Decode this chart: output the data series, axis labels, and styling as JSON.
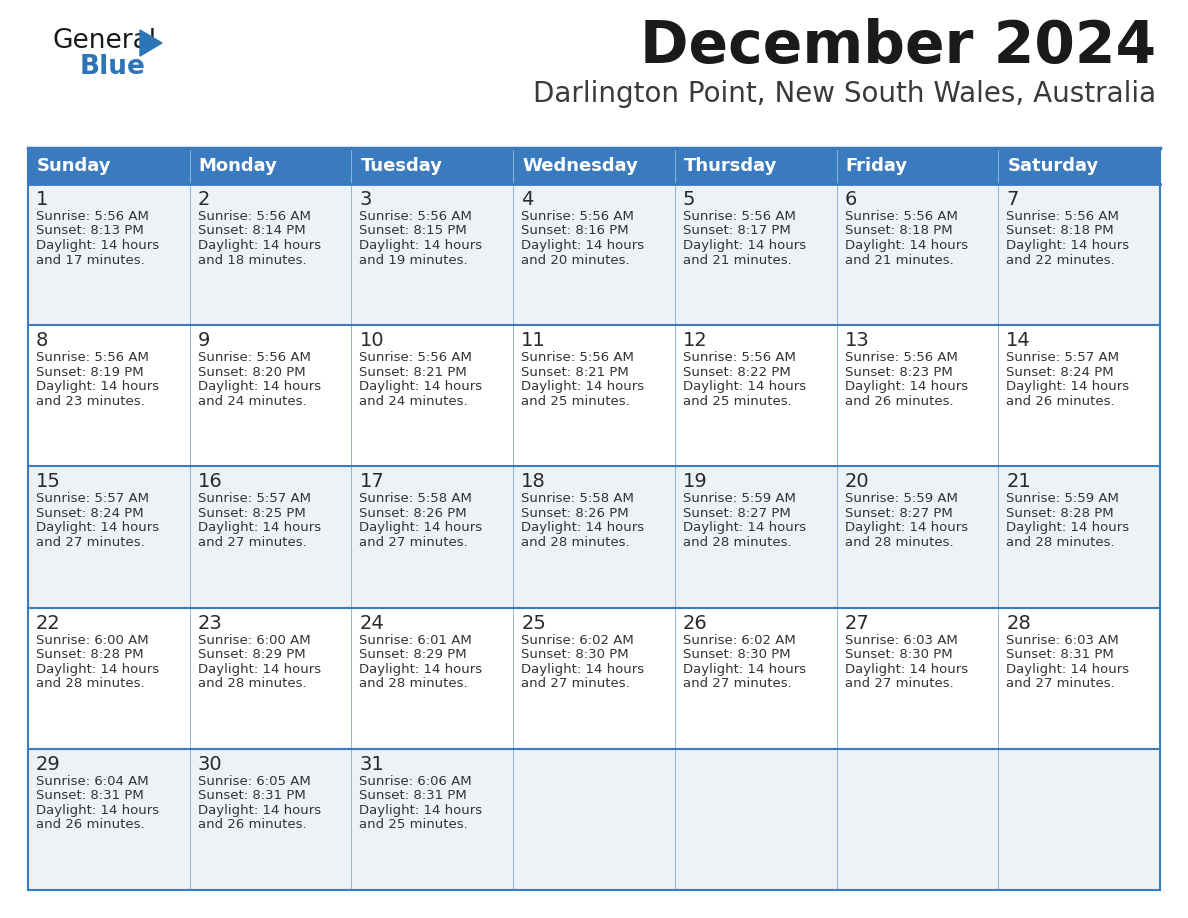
{
  "title": "December 2024",
  "subtitle": "Darlington Point, New South Wales, Australia",
  "header_color": "#3a7bbf",
  "header_text_color": "#ffffff",
  "cell_bg_light": "#eef2f7",
  "cell_bg_white": "#ffffff",
  "border_color": "#3a7bbf",
  "line_color": "#a0b8d0",
  "day_headers": [
    "Sunday",
    "Monday",
    "Tuesday",
    "Wednesday",
    "Thursday",
    "Friday",
    "Saturday"
  ],
  "weeks": [
    [
      {
        "day": 1,
        "sunrise": "5:56 AM",
        "sunset": "8:13 PM",
        "daylight": "14 hours and 17 minutes."
      },
      {
        "day": 2,
        "sunrise": "5:56 AM",
        "sunset": "8:14 PM",
        "daylight": "14 hours and 18 minutes."
      },
      {
        "day": 3,
        "sunrise": "5:56 AM",
        "sunset": "8:15 PM",
        "daylight": "14 hours and 19 minutes."
      },
      {
        "day": 4,
        "sunrise": "5:56 AM",
        "sunset": "8:16 PM",
        "daylight": "14 hours and 20 minutes."
      },
      {
        "day": 5,
        "sunrise": "5:56 AM",
        "sunset": "8:17 PM",
        "daylight": "14 hours and 21 minutes."
      },
      {
        "day": 6,
        "sunrise": "5:56 AM",
        "sunset": "8:18 PM",
        "daylight": "14 hours and 21 minutes."
      },
      {
        "day": 7,
        "sunrise": "5:56 AM",
        "sunset": "8:18 PM",
        "daylight": "14 hours and 22 minutes."
      }
    ],
    [
      {
        "day": 8,
        "sunrise": "5:56 AM",
        "sunset": "8:19 PM",
        "daylight": "14 hours and 23 minutes."
      },
      {
        "day": 9,
        "sunrise": "5:56 AM",
        "sunset": "8:20 PM",
        "daylight": "14 hours and 24 minutes."
      },
      {
        "day": 10,
        "sunrise": "5:56 AM",
        "sunset": "8:21 PM",
        "daylight": "14 hours and 24 minutes."
      },
      {
        "day": 11,
        "sunrise": "5:56 AM",
        "sunset": "8:21 PM",
        "daylight": "14 hours and 25 minutes."
      },
      {
        "day": 12,
        "sunrise": "5:56 AM",
        "sunset": "8:22 PM",
        "daylight": "14 hours and 25 minutes."
      },
      {
        "day": 13,
        "sunrise": "5:56 AM",
        "sunset": "8:23 PM",
        "daylight": "14 hours and 26 minutes."
      },
      {
        "day": 14,
        "sunrise": "5:57 AM",
        "sunset": "8:24 PM",
        "daylight": "14 hours and 26 minutes."
      }
    ],
    [
      {
        "day": 15,
        "sunrise": "5:57 AM",
        "sunset": "8:24 PM",
        "daylight": "14 hours and 27 minutes."
      },
      {
        "day": 16,
        "sunrise": "5:57 AM",
        "sunset": "8:25 PM",
        "daylight": "14 hours and 27 minutes."
      },
      {
        "day": 17,
        "sunrise": "5:58 AM",
        "sunset": "8:26 PM",
        "daylight": "14 hours and 27 minutes."
      },
      {
        "day": 18,
        "sunrise": "5:58 AM",
        "sunset": "8:26 PM",
        "daylight": "14 hours and 28 minutes."
      },
      {
        "day": 19,
        "sunrise": "5:59 AM",
        "sunset": "8:27 PM",
        "daylight": "14 hours and 28 minutes."
      },
      {
        "day": 20,
        "sunrise": "5:59 AM",
        "sunset": "8:27 PM",
        "daylight": "14 hours and 28 minutes."
      },
      {
        "day": 21,
        "sunrise": "5:59 AM",
        "sunset": "8:28 PM",
        "daylight": "14 hours and 28 minutes."
      }
    ],
    [
      {
        "day": 22,
        "sunrise": "6:00 AM",
        "sunset": "8:28 PM",
        "daylight": "14 hours and 28 minutes."
      },
      {
        "day": 23,
        "sunrise": "6:00 AM",
        "sunset": "8:29 PM",
        "daylight": "14 hours and 28 minutes."
      },
      {
        "day": 24,
        "sunrise": "6:01 AM",
        "sunset": "8:29 PM",
        "daylight": "14 hours and 28 minutes."
      },
      {
        "day": 25,
        "sunrise": "6:02 AM",
        "sunset": "8:30 PM",
        "daylight": "14 hours and 27 minutes."
      },
      {
        "day": 26,
        "sunrise": "6:02 AM",
        "sunset": "8:30 PM",
        "daylight": "14 hours and 27 minutes."
      },
      {
        "day": 27,
        "sunrise": "6:03 AM",
        "sunset": "8:30 PM",
        "daylight": "14 hours and 27 minutes."
      },
      {
        "day": 28,
        "sunrise": "6:03 AM",
        "sunset": "8:31 PM",
        "daylight": "14 hours and 27 minutes."
      }
    ],
    [
      {
        "day": 29,
        "sunrise": "6:04 AM",
        "sunset": "8:31 PM",
        "daylight": "14 hours and 26 minutes."
      },
      {
        "day": 30,
        "sunrise": "6:05 AM",
        "sunset": "8:31 PM",
        "daylight": "14 hours and 26 minutes."
      },
      {
        "day": 31,
        "sunrise": "6:06 AM",
        "sunset": "8:31 PM",
        "daylight": "14 hours and 25 minutes."
      },
      null,
      null,
      null,
      null
    ]
  ],
  "logo_color_general": "#1a1a1a",
  "logo_color_blue": "#2e75b6",
  "title_fontsize": 42,
  "subtitle_fontsize": 20,
  "header_fontsize": 13,
  "day_num_fontsize": 14,
  "cell_fontsize": 9.5
}
